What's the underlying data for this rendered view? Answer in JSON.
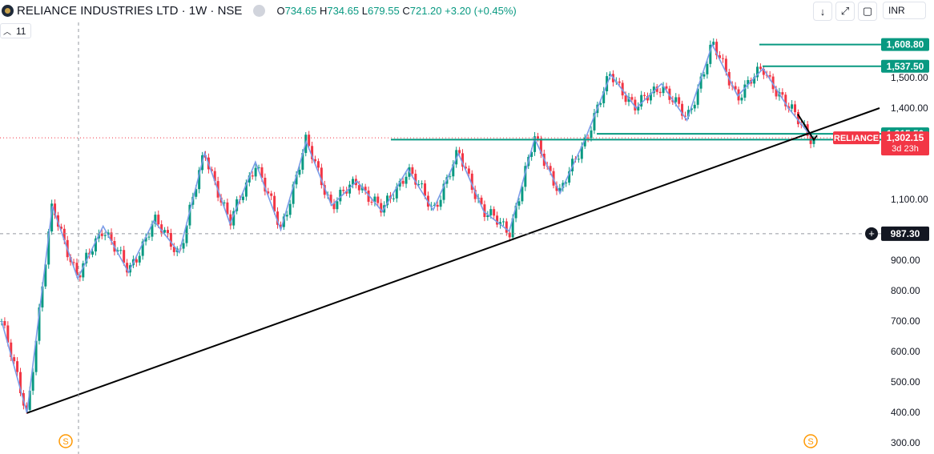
{
  "header": {
    "symbol": "RELIANCE INDUSTRIES LTD · 1W · NSE",
    "open_label": "O",
    "open_value": "734.65",
    "high_label": "H",
    "high_value": "734.65",
    "low_label": "L",
    "low_value": "679.55",
    "close_label": "C",
    "close_value": "721.20",
    "change": "+3.20 (+0.45%)",
    "indicator_value": "11",
    "currency": "INR"
  },
  "icons": [
    "eye-icon",
    "arrow-down-icon",
    "expand-icon",
    "screenshot-icon",
    "chevron-up-icon"
  ],
  "colors": {
    "up": "#089981",
    "down": "#f23645",
    "zigzag": "#7b9ce8",
    "trend": "#000000",
    "level": "#089981"
  },
  "chart_data": {
    "type": "candlestick",
    "title": "RELIANCE INDUSTRIES LTD · 1W · NSE",
    "ylim": [
      290,
      1640
    ],
    "y_ticks": [
      "1,500.00",
      "1,400.00",
      "1,100.00",
      "900.00",
      "800.00",
      "700.00",
      "600.00",
      "500.00",
      "400.00",
      "300.00"
    ],
    "zigzag": [
      700,
      398,
      1078,
      840,
      1012,
      860,
      1030,
      925,
      1253,
      1020,
      1223,
      1000,
      1290,
      1080,
      1160,
      1060,
      1200,
      1065,
      1250,
      1060,
      995,
      1300,
      1120,
      1300,
      1510,
      1400,
      1480,
      1360,
      1609,
      1440,
      1530,
      1400,
      1296
    ],
    "levels": [
      {
        "label": "1,608.80",
        "value": 1608.8
      },
      {
        "label": "1,537.50",
        "value": 1537.5
      },
      {
        "label": "1,315.50",
        "value": 1315.5
      },
      {
        "label": "1,296.50",
        "value": 1296.5
      }
    ],
    "trendline": {
      "from": 398,
      "to": 1400
    },
    "last_price": {
      "symbol": "RELIANCE",
      "label": "1,302.15",
      "value": 1302.15,
      "countdown": "3d 23h"
    },
    "crosshair": {
      "label": "987.30",
      "value": 987.3
    },
    "markers": [
      "S",
      "S"
    ]
  }
}
